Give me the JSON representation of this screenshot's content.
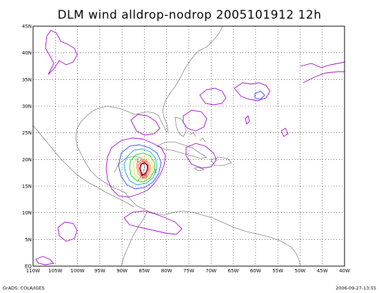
{
  "figure": {
    "title": "DLM wind alldrop-nodrop 2005101912 12h",
    "footer_left": "GrADS: COLA/IGES",
    "footer_right": "2006-09-27-13:55"
  },
  "axes": {
    "lon_min": -110,
    "lon_max": -40,
    "lat_min": 0,
    "lat_max": 45,
    "lon_ticks": [
      {
        "value": -110,
        "label": "110W"
      },
      {
        "value": -105,
        "label": "105W"
      },
      {
        "value": -100,
        "label": "100W"
      },
      {
        "value": -95,
        "label": "95W"
      },
      {
        "value": -90,
        "label": "90W"
      },
      {
        "value": -85,
        "label": "85W"
      },
      {
        "value": -80,
        "label": "80W"
      },
      {
        "value": -75,
        "label": "75W"
      },
      {
        "value": -70,
        "label": "70W"
      },
      {
        "value": -65,
        "label": "65W"
      },
      {
        "value": -60,
        "label": "60W"
      },
      {
        "value": -55,
        "label": "55W"
      },
      {
        "value": -50,
        "label": "50W"
      },
      {
        "value": -45,
        "label": "45W"
      },
      {
        "value": -40,
        "label": "40W"
      }
    ],
    "lat_ticks": [
      {
        "value": 0,
        "label": "EQ"
      },
      {
        "value": 5,
        "label": "5N"
      },
      {
        "value": 10,
        "label": "10N"
      },
      {
        "value": 15,
        "label": "15N"
      },
      {
        "value": 20,
        "label": "20N"
      },
      {
        "value": 25,
        "label": "25N"
      },
      {
        "value": 30,
        "label": "30N"
      },
      {
        "value": 35,
        "label": "35N"
      },
      {
        "value": 40,
        "label": "40N"
      },
      {
        "value": 45,
        "label": "45N"
      }
    ],
    "grid": "dotted"
  },
  "colors": {
    "coastline": "#808080",
    "grid": "#000000",
    "contour_1": "#a000c8",
    "contour_2": "#1e3cff",
    "contour_3": "#00a0c8",
    "contour_4": "#00dc00",
    "contour_5": "#e6dc32",
    "contour_6": "#f08228",
    "contour_7": "#fa3c3c",
    "contour_10": "#a00000"
  },
  "contour_labels": [
    {
      "text": "1",
      "lon": -86.5,
      "lat": 19.5,
      "color": "contour_1"
    },
    {
      "text": "1",
      "lon": -82.5,
      "lat": 17.5,
      "color": "contour_1"
    },
    {
      "text": "10",
      "lon": -85.0,
      "lat": 16.5,
      "color": "contour_10"
    }
  ]
}
